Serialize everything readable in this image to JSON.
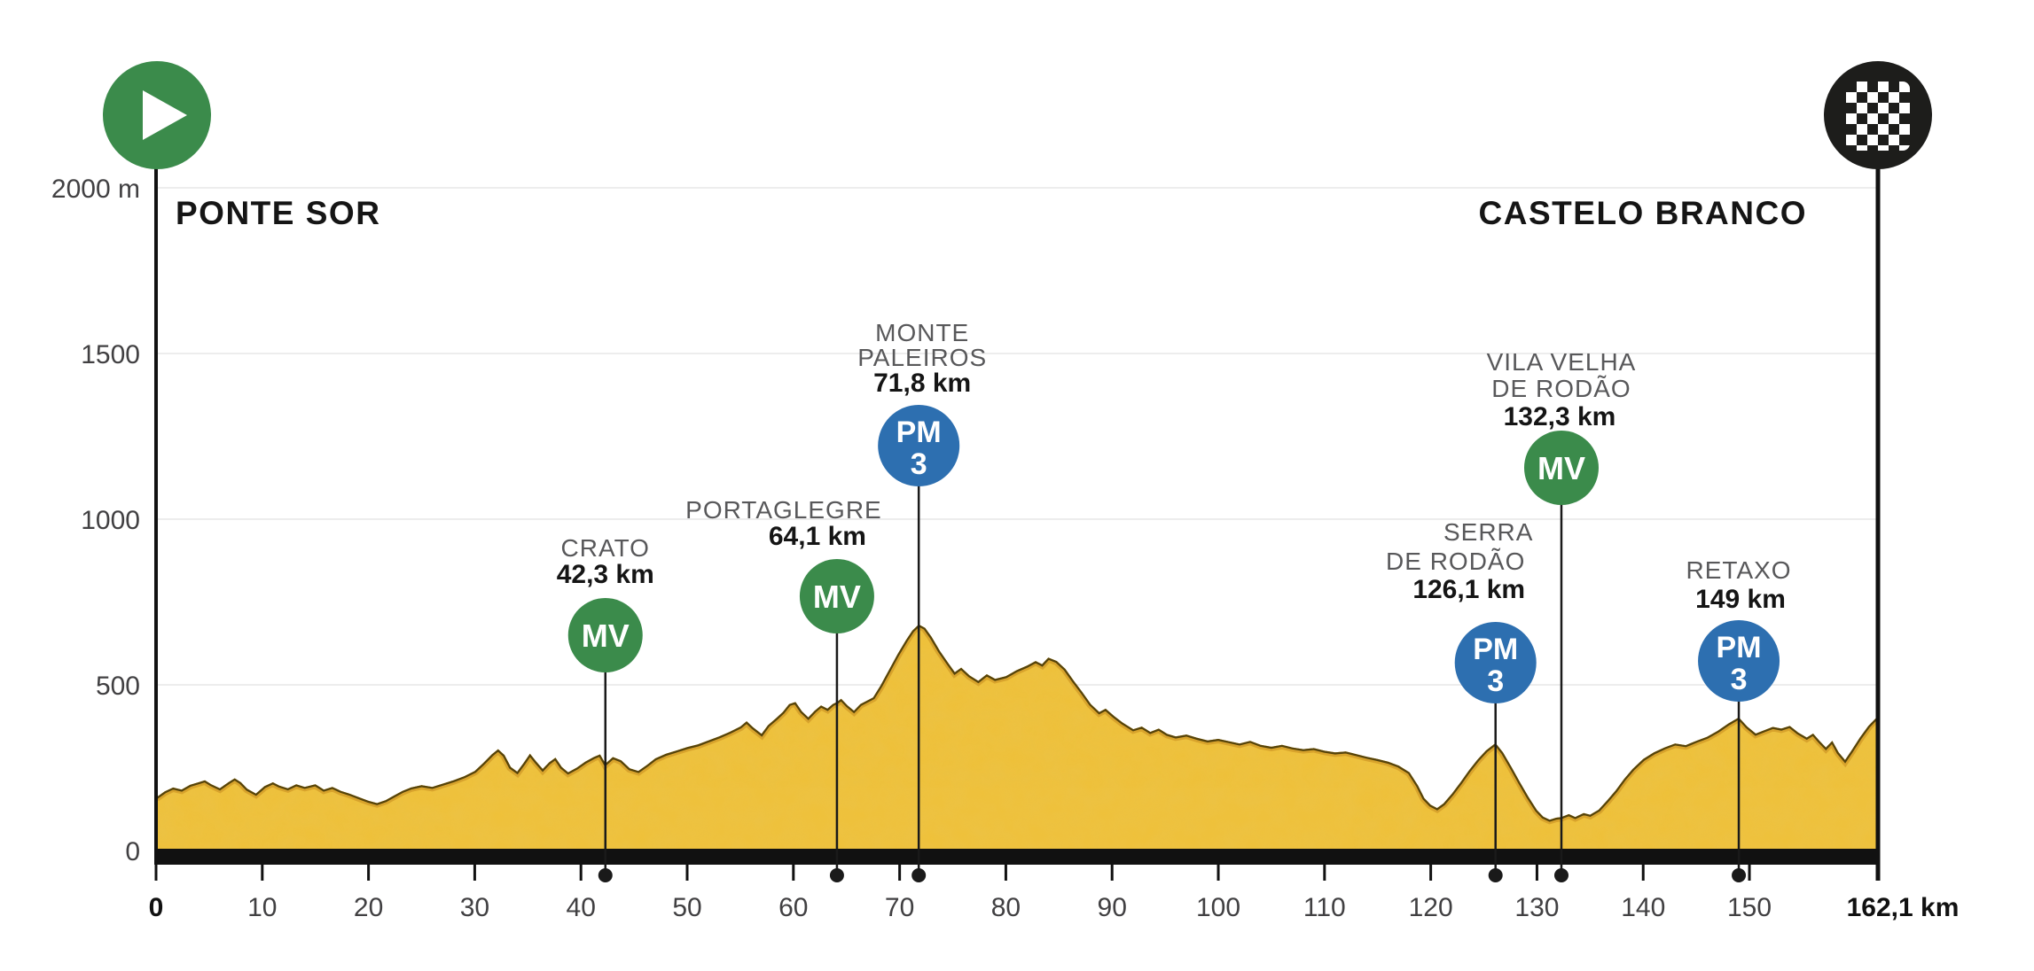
{
  "chart_data": {
    "type": "area",
    "x_unit": "km",
    "y_unit": "m",
    "x_max": 162.1,
    "y_max": 2000,
    "grid": "horizontal",
    "x_ticks": [
      0,
      10,
      20,
      30,
      40,
      50,
      60,
      70,
      80,
      90,
      100,
      110,
      120,
      130,
      140,
      150
    ],
    "x_end_label": "162,1 km",
    "y_ticks": [
      {
        "value": 0,
        "label": "0"
      },
      {
        "value": 500,
        "label": "500"
      },
      {
        "value": 1000,
        "label": "1000"
      },
      {
        "value": 1500,
        "label": "1500"
      },
      {
        "value": 2000,
        "label": "2000 m"
      }
    ],
    "start": {
      "name": "PONTE SOR",
      "km": 0
    },
    "finish": {
      "name": "CASTELO BRANCO",
      "km": 162.1
    },
    "markers": [
      {
        "type": "MV",
        "km": 42.3,
        "badge_cy": 717,
        "lines": [
          {
            "text": "CRATO",
            "dx": 0,
            "y": 628,
            "bold": false
          },
          {
            "text": "42,3 km",
            "dx": 0,
            "y": 658,
            "bold": true
          }
        ]
      },
      {
        "type": "MV",
        "km": 64.1,
        "badge_cy": 673,
        "lines": [
          {
            "text": "PORTAGLEGRE",
            "dx": -60,
            "y": 585,
            "bold": false
          },
          {
            "text": "64,1 km",
            "dx": -22,
            "y": 615,
            "bold": true
          }
        ]
      },
      {
        "type": "PM3",
        "km": 71.8,
        "badge_cy": 503,
        "lines": [
          {
            "text": "MONTE",
            "dx": 4,
            "y": 385,
            "bold": false
          },
          {
            "text": "PALEIROS",
            "dx": 4,
            "y": 413,
            "bold": false
          },
          {
            "text": "71,8 km",
            "dx": 4,
            "y": 442,
            "bold": true
          }
        ]
      },
      {
        "type": "PM3",
        "km": 126.1,
        "badge_cy": 748,
        "lines": [
          {
            "text": "SERRA",
            "dx": -8,
            "y": 610,
            "bold": false
          },
          {
            "text": "DE RODÃO",
            "dx": -45,
            "y": 643,
            "bold": false
          },
          {
            "text": "126,1 km",
            "dx": -30,
            "y": 675,
            "bold": true
          }
        ]
      },
      {
        "type": "MV",
        "km": 132.3,
        "badge_cy": 528,
        "lines": [
          {
            "text": "VILA VELHA",
            "dx": 0,
            "y": 418,
            "bold": false
          },
          {
            "text": "DE RODÃO",
            "dx": 0,
            "y": 448,
            "bold": false
          },
          {
            "text": "132,3 km",
            "dx": -2,
            "y": 480,
            "bold": true
          }
        ]
      },
      {
        "type": "PM3",
        "km": 149,
        "badge_cy": 746,
        "lines": [
          {
            "text": "RETAXO",
            "dx": 0,
            "y": 653,
            "bold": false
          },
          {
            "text": "149 km",
            "dx": 2,
            "y": 686,
            "bold": true
          }
        ]
      }
    ],
    "badge_labels": {
      "MV": [
        "MV"
      ],
      "PM3": [
        "PM",
        "3"
      ]
    },
    "profile": [
      [
        0,
        160
      ],
      [
        0.8,
        178
      ],
      [
        1.6,
        190
      ],
      [
        2.4,
        184
      ],
      [
        3.2,
        198
      ],
      [
        4,
        206
      ],
      [
        4.6,
        212
      ],
      [
        5.2,
        200
      ],
      [
        6,
        188
      ],
      [
        6.8,
        206
      ],
      [
        7.4,
        218
      ],
      [
        8,
        206
      ],
      [
        8.6,
        186
      ],
      [
        9.4,
        172
      ],
      [
        10.2,
        194
      ],
      [
        11,
        206
      ],
      [
        11.6,
        196
      ],
      [
        12.4,
        188
      ],
      [
        13.2,
        200
      ],
      [
        14,
        192
      ],
      [
        15,
        200
      ],
      [
        15.8,
        184
      ],
      [
        16.6,
        192
      ],
      [
        17.4,
        180
      ],
      [
        18.2,
        172
      ],
      [
        19,
        162
      ],
      [
        20,
        150
      ],
      [
        20.8,
        143
      ],
      [
        21.6,
        152
      ],
      [
        22.4,
        166
      ],
      [
        23.2,
        180
      ],
      [
        24,
        190
      ],
      [
        25,
        197
      ],
      [
        26,
        192
      ],
      [
        27,
        202
      ],
      [
        28,
        212
      ],
      [
        29,
        224
      ],
      [
        30,
        240
      ],
      [
        30.8,
        264
      ],
      [
        31.6,
        290
      ],
      [
        32.2,
        306
      ],
      [
        32.8,
        288
      ],
      [
        33.4,
        252
      ],
      [
        34,
        238
      ],
      [
        34.6,
        264
      ],
      [
        35.2,
        292
      ],
      [
        35.8,
        268
      ],
      [
        36.4,
        246
      ],
      [
        37,
        266
      ],
      [
        37.6,
        280
      ],
      [
        38.2,
        252
      ],
      [
        38.8,
        236
      ],
      [
        39.6,
        250
      ],
      [
        40.4,
        268
      ],
      [
        41.2,
        282
      ],
      [
        41.8,
        290
      ],
      [
        42.3,
        262
      ],
      [
        43,
        282
      ],
      [
        43.8,
        272
      ],
      [
        44.6,
        248
      ],
      [
        45.4,
        240
      ],
      [
        46.2,
        258
      ],
      [
        47,
        278
      ],
      [
        48,
        292
      ],
      [
        49,
        302
      ],
      [
        50,
        312
      ],
      [
        51,
        320
      ],
      [
        52,
        332
      ],
      [
        53,
        344
      ],
      [
        54,
        358
      ],
      [
        55,
        374
      ],
      [
        55.6,
        390
      ],
      [
        56.2,
        372
      ],
      [
        57,
        352
      ],
      [
        57.6,
        378
      ],
      [
        58.4,
        400
      ],
      [
        59,
        418
      ],
      [
        59.6,
        442
      ],
      [
        60.2,
        448
      ],
      [
        60.8,
        420
      ],
      [
        61.4,
        402
      ],
      [
        62,
        422
      ],
      [
        62.6,
        438
      ],
      [
        63.2,
        428
      ],
      [
        63.7,
        442
      ],
      [
        64.1,
        448
      ],
      [
        64.5,
        458
      ],
      [
        65.1,
        438
      ],
      [
        65.7,
        422
      ],
      [
        66.3,
        442
      ],
      [
        66.9,
        452
      ],
      [
        67.5,
        462
      ],
      [
        68.2,
        498
      ],
      [
        69,
        545
      ],
      [
        69.8,
        592
      ],
      [
        70.6,
        635
      ],
      [
        71.2,
        664
      ],
      [
        71.8,
        682
      ],
      [
        72.4,
        672
      ],
      [
        73,
        645
      ],
      [
        73.8,
        602
      ],
      [
        74.6,
        565
      ],
      [
        75.2,
        538
      ],
      [
        75.8,
        552
      ],
      [
        76.6,
        528
      ],
      [
        77.4,
        512
      ],
      [
        78.2,
        532
      ],
      [
        79,
        518
      ],
      [
        80,
        526
      ],
      [
        81,
        544
      ],
      [
        82,
        558
      ],
      [
        82.8,
        572
      ],
      [
        83.4,
        562
      ],
      [
        84,
        582
      ],
      [
        84.8,
        572
      ],
      [
        85.6,
        548
      ],
      [
        86.4,
        512
      ],
      [
        87.2,
        478
      ],
      [
        88,
        442
      ],
      [
        88.8,
        418
      ],
      [
        89.4,
        428
      ],
      [
        90.2,
        406
      ],
      [
        91,
        386
      ],
      [
        92,
        366
      ],
      [
        92.8,
        374
      ],
      [
        93.6,
        358
      ],
      [
        94.4,
        368
      ],
      [
        95.2,
        352
      ],
      [
        96,
        344
      ],
      [
        97,
        350
      ],
      [
        98,
        340
      ],
      [
        99,
        332
      ],
      [
        100,
        337
      ],
      [
        101,
        330
      ],
      [
        102,
        323
      ],
      [
        103,
        331
      ],
      [
        104,
        319
      ],
      [
        105,
        313
      ],
      [
        106,
        319
      ],
      [
        107,
        311
      ],
      [
        108,
        306
      ],
      [
        109,
        309
      ],
      [
        110,
        301
      ],
      [
        111,
        296
      ],
      [
        112,
        299
      ],
      [
        113,
        291
      ],
      [
        114,
        283
      ],
      [
        115,
        276
      ],
      [
        116,
        268
      ],
      [
        117,
        256
      ],
      [
        118,
        236
      ],
      [
        118.8,
        196
      ],
      [
        119.4,
        158
      ],
      [
        120,
        138
      ],
      [
        120.6,
        128
      ],
      [
        121.2,
        142
      ],
      [
        122,
        172
      ],
      [
        122.8,
        206
      ],
      [
        123.6,
        242
      ],
      [
        124.4,
        274
      ],
      [
        125.2,
        302
      ],
      [
        126.1,
        324
      ],
      [
        126.8,
        296
      ],
      [
        127.6,
        252
      ],
      [
        128.4,
        206
      ],
      [
        129.2,
        162
      ],
      [
        130,
        122
      ],
      [
        130.6,
        102
      ],
      [
        131.2,
        93
      ],
      [
        131.8,
        99
      ],
      [
        132.3,
        101
      ],
      [
        133,
        110
      ],
      [
        133.6,
        101
      ],
      [
        134.4,
        113
      ],
      [
        135,
        108
      ],
      [
        135.8,
        123
      ],
      [
        136.6,
        151
      ],
      [
        137.4,
        181
      ],
      [
        138.2,
        216
      ],
      [
        139,
        246
      ],
      [
        140,
        276
      ],
      [
        141,
        296
      ],
      [
        142,
        311
      ],
      [
        143,
        323
      ],
      [
        144,
        318
      ],
      [
        145,
        331
      ],
      [
        146,
        343
      ],
      [
        147,
        361
      ],
      [
        148,
        383
      ],
      [
        149,
        402
      ],
      [
        149.8,
        374
      ],
      [
        150.6,
        353
      ],
      [
        151.4,
        363
      ],
      [
        152.2,
        373
      ],
      [
        153,
        368
      ],
      [
        153.8,
        376
      ],
      [
        154.6,
        356
      ],
      [
        155.4,
        341
      ],
      [
        156,
        353
      ],
      [
        156.6,
        331
      ],
      [
        157.2,
        311
      ],
      [
        157.8,
        331
      ],
      [
        158.4,
        296
      ],
      [
        159,
        273
      ],
      [
        159.6,
        301
      ],
      [
        160.4,
        341
      ],
      [
        161.2,
        376
      ],
      [
        162.1,
        406
      ]
    ]
  },
  "colors": {
    "profile_fill": "#efc139",
    "profile_edge_dark": "#55430b",
    "profile_edge_gold": "#d8a32c",
    "grid": "#ededed",
    "axis_black": "#111111",
    "mv_green": "#3b8b4b",
    "pm_blue": "#2d6fb0",
    "start_green": "#3b8b4b",
    "finish_black": "#1d1d1b",
    "label_gray": "#58585a",
    "text_black": "#151515"
  }
}
